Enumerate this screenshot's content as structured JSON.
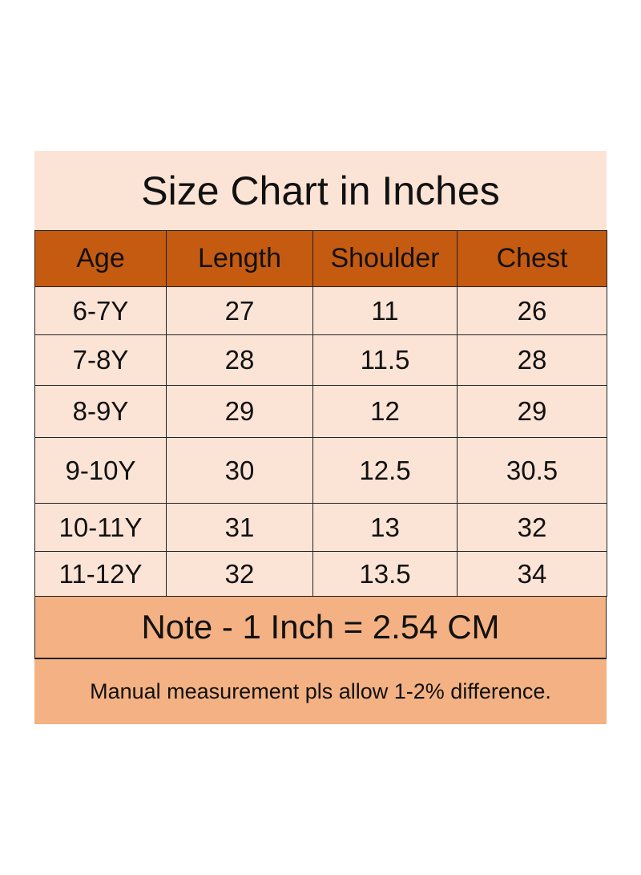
{
  "title": "Size Chart in Inches",
  "table": {
    "header": [
      "Age",
      "Length",
      "Shoulder",
      "Chest"
    ],
    "rows": [
      [
        "6-7Y",
        27,
        11,
        26
      ],
      [
        "7-8Y",
        28,
        11.5,
        28
      ],
      [
        "8-9Y",
        29,
        12,
        29
      ],
      [
        "9-10Y",
        30,
        12.5,
        30.5
      ],
      [
        "10-11Y",
        31,
        13,
        32
      ],
      [
        "11-12Y",
        32,
        13.5,
        34
      ]
    ]
  },
  "note": "Note - 1 Inch = 2.54 CM",
  "footer": "Manual measurement pls allow 1-2% difference."
}
